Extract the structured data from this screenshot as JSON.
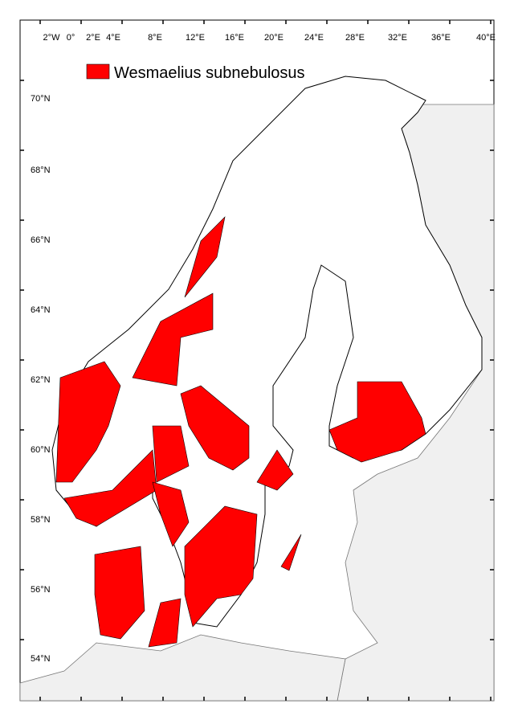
{
  "legend": {
    "label": "Wesmaelius subnebulosus",
    "color": "#ff0000"
  },
  "longitude_labels": [
    "2°W",
    "0°",
    "2°E",
    "4°E",
    "8°E",
    "12°E",
    "16°E",
    "20°E",
    "24°E",
    "28°E",
    "32°E",
    "36°E",
    "40°E"
  ],
  "latitude_labels": [
    "70°N",
    "68°N",
    "66°N",
    "64°N",
    "62°N",
    "60°N",
    "58°N",
    "56°N",
    "54°N"
  ],
  "colors": {
    "presence": "#ff0000",
    "land": "#ffffff",
    "outside_land": "#f0f0f0",
    "border": "#000000"
  }
}
